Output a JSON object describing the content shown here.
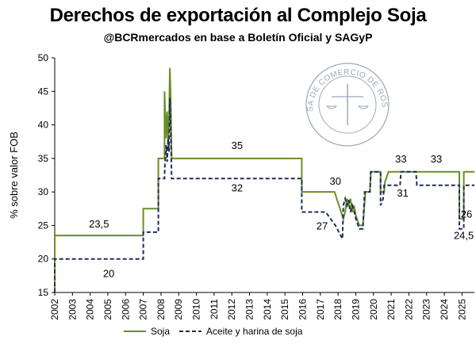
{
  "chart_data": {
    "type": "line",
    "title": "Derechos de exportación al Complejo Soja",
    "subtitle": "@BCRmercados en base a Boletín Oficial y SAGyP",
    "ylabel": "% sobre valor FOB",
    "xlabel": "",
    "xlim": [
      2002,
      2025.7
    ],
    "ylim": [
      15,
      50
    ],
    "yticks": [
      15,
      20,
      25,
      30,
      35,
      40,
      45,
      50
    ],
    "xticks": [
      "2002",
      "2003",
      "2004",
      "2005",
      "2006",
      "2007",
      "2008",
      "2009",
      "2010",
      "2011",
      "2012",
      "2013",
      "2014",
      "2015",
      "2016",
      "2017",
      "2018",
      "2019",
      "2020",
      "2021",
      "2022",
      "2023",
      "2024",
      "2025"
    ],
    "grid": false,
    "legend_position": "bottom",
    "watermark_text": "BOLSA DE COMERCIO DE ROSARIO",
    "series": [
      {
        "name": "Soja",
        "color": "#6b8e23",
        "style": "solid",
        "points": [
          [
            2002.0,
            15
          ],
          [
            2002.0,
            23.5
          ],
          [
            2007.0,
            23.5
          ],
          [
            2007.0,
            27.5
          ],
          [
            2007.85,
            27.5
          ],
          [
            2007.85,
            35
          ],
          [
            2008.2,
            35
          ],
          [
            2008.2,
            45
          ],
          [
            2008.28,
            38
          ],
          [
            2008.35,
            42
          ],
          [
            2008.4,
            37
          ],
          [
            2008.45,
            40
          ],
          [
            2008.5,
            48.5
          ],
          [
            2008.55,
            44
          ],
          [
            2008.6,
            35
          ],
          [
            2015.95,
            35
          ],
          [
            2015.95,
            30
          ],
          [
            2017.8,
            30
          ],
          [
            2018.05,
            28
          ],
          [
            2018.3,
            26
          ],
          [
            2018.4,
            27
          ],
          [
            2018.5,
            29
          ],
          [
            2018.6,
            28
          ],
          [
            2018.7,
            29
          ],
          [
            2018.8,
            27
          ],
          [
            2018.9,
            28
          ],
          [
            2019.0,
            26.5
          ],
          [
            2019.2,
            25
          ],
          [
            2019.4,
            25
          ],
          [
            2019.55,
            30
          ],
          [
            2019.8,
            30
          ],
          [
            2019.85,
            33
          ],
          [
            2020.4,
            33
          ],
          [
            2020.4,
            30
          ],
          [
            2020.6,
            30
          ],
          [
            2020.65,
            31.5
          ],
          [
            2020.85,
            33
          ],
          [
            2024.85,
            33
          ],
          [
            2024.85,
            26
          ],
          [
            2025.1,
            26
          ],
          [
            2025.1,
            33
          ],
          [
            2025.7,
            33
          ]
        ]
      },
      {
        "name": "Aceite y harina de soja",
        "color": "#1f2d5c",
        "style": "dashed",
        "points": [
          [
            2002.0,
            15
          ],
          [
            2002.0,
            20
          ],
          [
            2007.0,
            20
          ],
          [
            2007.0,
            24
          ],
          [
            2007.85,
            24
          ],
          [
            2007.85,
            32
          ],
          [
            2008.2,
            32
          ],
          [
            2008.22,
            34
          ],
          [
            2008.3,
            37
          ],
          [
            2008.35,
            34.5
          ],
          [
            2008.4,
            38
          ],
          [
            2008.45,
            36
          ],
          [
            2008.5,
            44
          ],
          [
            2008.55,
            40
          ],
          [
            2008.6,
            32
          ],
          [
            2015.95,
            32
          ],
          [
            2015.95,
            27
          ],
          [
            2017.3,
            27
          ],
          [
            2017.85,
            25
          ],
          [
            2018.05,
            24
          ],
          [
            2018.25,
            23
          ],
          [
            2018.3,
            28
          ],
          [
            2018.4,
            29
          ],
          [
            2018.5,
            28
          ],
          [
            2018.6,
            28.8
          ],
          [
            2018.7,
            27
          ],
          [
            2018.8,
            28
          ],
          [
            2018.9,
            27.2
          ],
          [
            2019.0,
            26
          ],
          [
            2019.2,
            24.5
          ],
          [
            2019.4,
            24.5
          ],
          [
            2019.5,
            30
          ],
          [
            2019.8,
            30
          ],
          [
            2019.85,
            33
          ],
          [
            2020.4,
            33
          ],
          [
            2020.4,
            28
          ],
          [
            2020.55,
            29
          ],
          [
            2020.6,
            31
          ],
          [
            2021.5,
            31
          ],
          [
            2021.55,
            33
          ],
          [
            2022.4,
            33
          ],
          [
            2022.45,
            31
          ],
          [
            2024.85,
            31
          ],
          [
            2024.85,
            24.5
          ],
          [
            2025.1,
            24.5
          ],
          [
            2025.1,
            31
          ],
          [
            2025.7,
            31
          ]
        ]
      }
    ],
    "annotations": [
      {
        "text": "23,5",
        "x": 2004.5,
        "y": 24.7
      },
      {
        "text": "20",
        "x": 2005.05,
        "y": 17.3
      },
      {
        "text": "35",
        "x": 2012.3,
        "y": 36.4
      },
      {
        "text": "32",
        "x": 2012.3,
        "y": 30.1
      },
      {
        "text": "30",
        "x": 2017.85,
        "y": 31.1
      },
      {
        "text": "27",
        "x": 2017.1,
        "y": 24.4
      },
      {
        "text": "33",
        "x": 2021.55,
        "y": 34.4
      },
      {
        "text": "31",
        "x": 2021.65,
        "y": 29.3
      },
      {
        "text": "33",
        "x": 2023.55,
        "y": 34.4
      },
      {
        "text": "26",
        "x": 2025.25,
        "y": 26.2
      },
      {
        "text": "24,5",
        "x": 2025.1,
        "y": 23.0
      }
    ]
  }
}
